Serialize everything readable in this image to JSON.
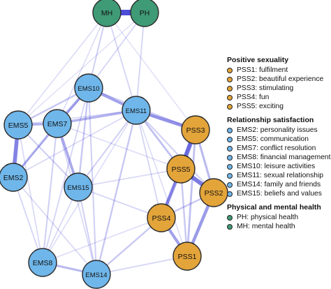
{
  "colors": {
    "positive_sexuality": "#e3a43a",
    "relationship_satisfaction": "#6fb6ea",
    "physical_mental_health": "#3f9a76",
    "node_border": "#2a2a2a",
    "edge": "#3a3ad4"
  },
  "nodes": [
    {
      "id": "MH",
      "label": "MH",
      "group": "physical_mental_health"
    },
    {
      "id": "PH",
      "label": "PH",
      "group": "physical_mental_health"
    },
    {
      "id": "EMS10",
      "label": "EMS10",
      "group": "relationship_satisfaction"
    },
    {
      "id": "EMS11",
      "label": "EMS11",
      "group": "relationship_satisfaction"
    },
    {
      "id": "EMS5",
      "label": "EMS5",
      "group": "relationship_satisfaction"
    },
    {
      "id": "EMS7",
      "label": "EMS7",
      "group": "relationship_satisfaction"
    },
    {
      "id": "EMS2",
      "label": "EMS2",
      "group": "relationship_satisfaction"
    },
    {
      "id": "EMS15",
      "label": "EMS15",
      "group": "relationship_satisfaction"
    },
    {
      "id": "EMS8",
      "label": "EMS8",
      "group": "relationship_satisfaction"
    },
    {
      "id": "EMS14",
      "label": "EMS14",
      "group": "relationship_satisfaction"
    },
    {
      "id": "PSS3",
      "label": "PSS3",
      "group": "positive_sexuality"
    },
    {
      "id": "PSS5",
      "label": "PSS5",
      "group": "positive_sexuality"
    },
    {
      "id": "PSS2",
      "label": "PSS2",
      "group": "positive_sexuality"
    },
    {
      "id": "PSS4",
      "label": "PSS4",
      "group": "positive_sexuality"
    },
    {
      "id": "PSS1",
      "label": "PSS1",
      "group": "positive_sexuality"
    }
  ],
  "edges": [
    {
      "from": "MH",
      "to": "PH",
      "weight": 1.0
    },
    {
      "from": "PSS3",
      "to": "PSS5",
      "weight": 0.75
    },
    {
      "from": "PSS5",
      "to": "PSS2",
      "weight": 0.7
    },
    {
      "from": "PSS5",
      "to": "PSS4",
      "weight": 0.55
    },
    {
      "from": "PSS2",
      "to": "PSS1",
      "weight": 0.5
    },
    {
      "from": "PSS4",
      "to": "PSS1",
      "weight": 0.45
    },
    {
      "from": "PSS3",
      "to": "PSS2",
      "weight": 0.3
    },
    {
      "from": "PSS3",
      "to": "PSS1",
      "weight": 0.25
    },
    {
      "from": "PSS3",
      "to": "PSS4",
      "weight": 0.2
    },
    {
      "from": "PSS2",
      "to": "PSS4",
      "weight": 0.2
    },
    {
      "from": "PSS5",
      "to": "PSS1",
      "weight": 0.2
    },
    {
      "from": "EMS11",
      "to": "PSS3",
      "weight": 0.55
    },
    {
      "from": "EMS11",
      "to": "PSS5",
      "weight": 0.25
    },
    {
      "from": "EMS11",
      "to": "PSS2",
      "weight": 0.15
    },
    {
      "from": "EMS10",
      "to": "EMS11",
      "weight": 0.45
    },
    {
      "from": "EMS10",
      "to": "EMS7",
      "weight": 0.4
    },
    {
      "from": "EMS7",
      "to": "EMS11",
      "weight": 0.35
    },
    {
      "from": "EMS10",
      "to": "EMS5",
      "weight": 0.2
    },
    {
      "from": "EMS10",
      "to": "EMS15",
      "weight": 0.2
    },
    {
      "from": "EMS5",
      "to": "EMS7",
      "weight": 0.35
    },
    {
      "from": "EMS5",
      "to": "EMS2",
      "weight": 0.65
    },
    {
      "from": "EMS2",
      "to": "EMS7",
      "weight": 0.3
    },
    {
      "from": "EMS7",
      "to": "EMS15",
      "weight": 0.4
    },
    {
      "from": "EMS5",
      "to": "EMS15",
      "weight": 0.15
    },
    {
      "from": "EMS7",
      "to": "EMS8",
      "weight": 0.15
    },
    {
      "from": "EMS8",
      "to": "EMS14",
      "weight": 0.3
    },
    {
      "from": "EMS14",
      "to": "EMS11",
      "weight": 0.2
    },
    {
      "from": "EMS14",
      "to": "PSS4",
      "weight": 0.2
    },
    {
      "from": "EMS14",
      "to": "EMS10",
      "weight": 0.15
    },
    {
      "from": "EMS14",
      "to": "EMS15",
      "weight": 0.15
    },
    {
      "from": "EMS14",
      "to": "PSS1",
      "weight": 0.12
    },
    {
      "from": "EMS8",
      "to": "EMS10",
      "weight": 0.12
    },
    {
      "from": "EMS8",
      "to": "EMS2",
      "weight": 0.12
    },
    {
      "from": "EMS8",
      "to": "EMS15",
      "weight": 0.1
    },
    {
      "from": "EMS2",
      "to": "EMS10",
      "weight": 0.12
    },
    {
      "from": "EMS2",
      "to": "EMS14",
      "weight": 0.1
    },
    {
      "from": "EMS2",
      "to": "EMS11",
      "weight": 0.1
    },
    {
      "from": "EMS15",
      "to": "EMS11",
      "weight": 0.15
    },
    {
      "from": "EMS15",
      "to": "PSS4",
      "weight": 0.12
    },
    {
      "from": "EMS15",
      "to": "PSS5",
      "weight": 0.1
    },
    {
      "from": "EMS10",
      "to": "PSS3",
      "weight": 0.12
    },
    {
      "from": "EMS5",
      "to": "EMS11",
      "weight": 0.1
    },
    {
      "from": "EMS7",
      "to": "EMS14",
      "weight": 0.1
    },
    {
      "from": "EMS5",
      "to": "EMS8",
      "weight": 0.1
    },
    {
      "from": "EMS11",
      "to": "PSS4",
      "weight": 0.12
    },
    {
      "from": "EMS11",
      "to": "PSS1",
      "weight": 0.08
    },
    {
      "from": "EMS11",
      "to": "EMS8",
      "weight": 0.08
    },
    {
      "from": "EMS7",
      "to": "PSS5",
      "weight": 0.08
    },
    {
      "from": "EMS8",
      "to": "PSS4",
      "weight": 0.08
    },
    {
      "from": "MH",
      "to": "EMS10",
      "weight": 0.15
    },
    {
      "from": "PH",
      "to": "EMS10",
      "weight": 0.12
    },
    {
      "from": "MH",
      "to": "EMS11",
      "weight": 0.12
    },
    {
      "from": "PH",
      "to": "EMS11",
      "weight": 0.12
    },
    {
      "from": "MH",
      "to": "EMS5",
      "weight": 0.08
    },
    {
      "from": "MH",
      "to": "EMS7",
      "weight": 0.08
    },
    {
      "from": "PH",
      "to": "EMS5",
      "weight": 0.06
    },
    {
      "from": "MH",
      "to": "PSS3",
      "weight": 0.06
    }
  ],
  "legend": [
    {
      "title": "Positive sexuality",
      "group": "positive_sexuality",
      "items": [
        "PSS1: fulfilment",
        "PSS2: beautiful experience",
        "PSS3: stimulating",
        "PSS4: fun",
        "PSS5: exciting"
      ]
    },
    {
      "title": "Relationship satisfaction",
      "group": "relationship_satisfaction",
      "items": [
        "EMS2: personality issues",
        "EMS5: communication",
        "EMS7: conflict resolution",
        "EMS8: financial management",
        "EMS10: leisure activities",
        "EMS11: sexual relationship",
        "EMS14: family and friends",
        "EMS15: beliefs and values"
      ]
    },
    {
      "title": "Physical and mental health",
      "group": "physical_mental_health",
      "items": [
        "PH: physical health",
        "MH: mental health"
      ]
    }
  ]
}
